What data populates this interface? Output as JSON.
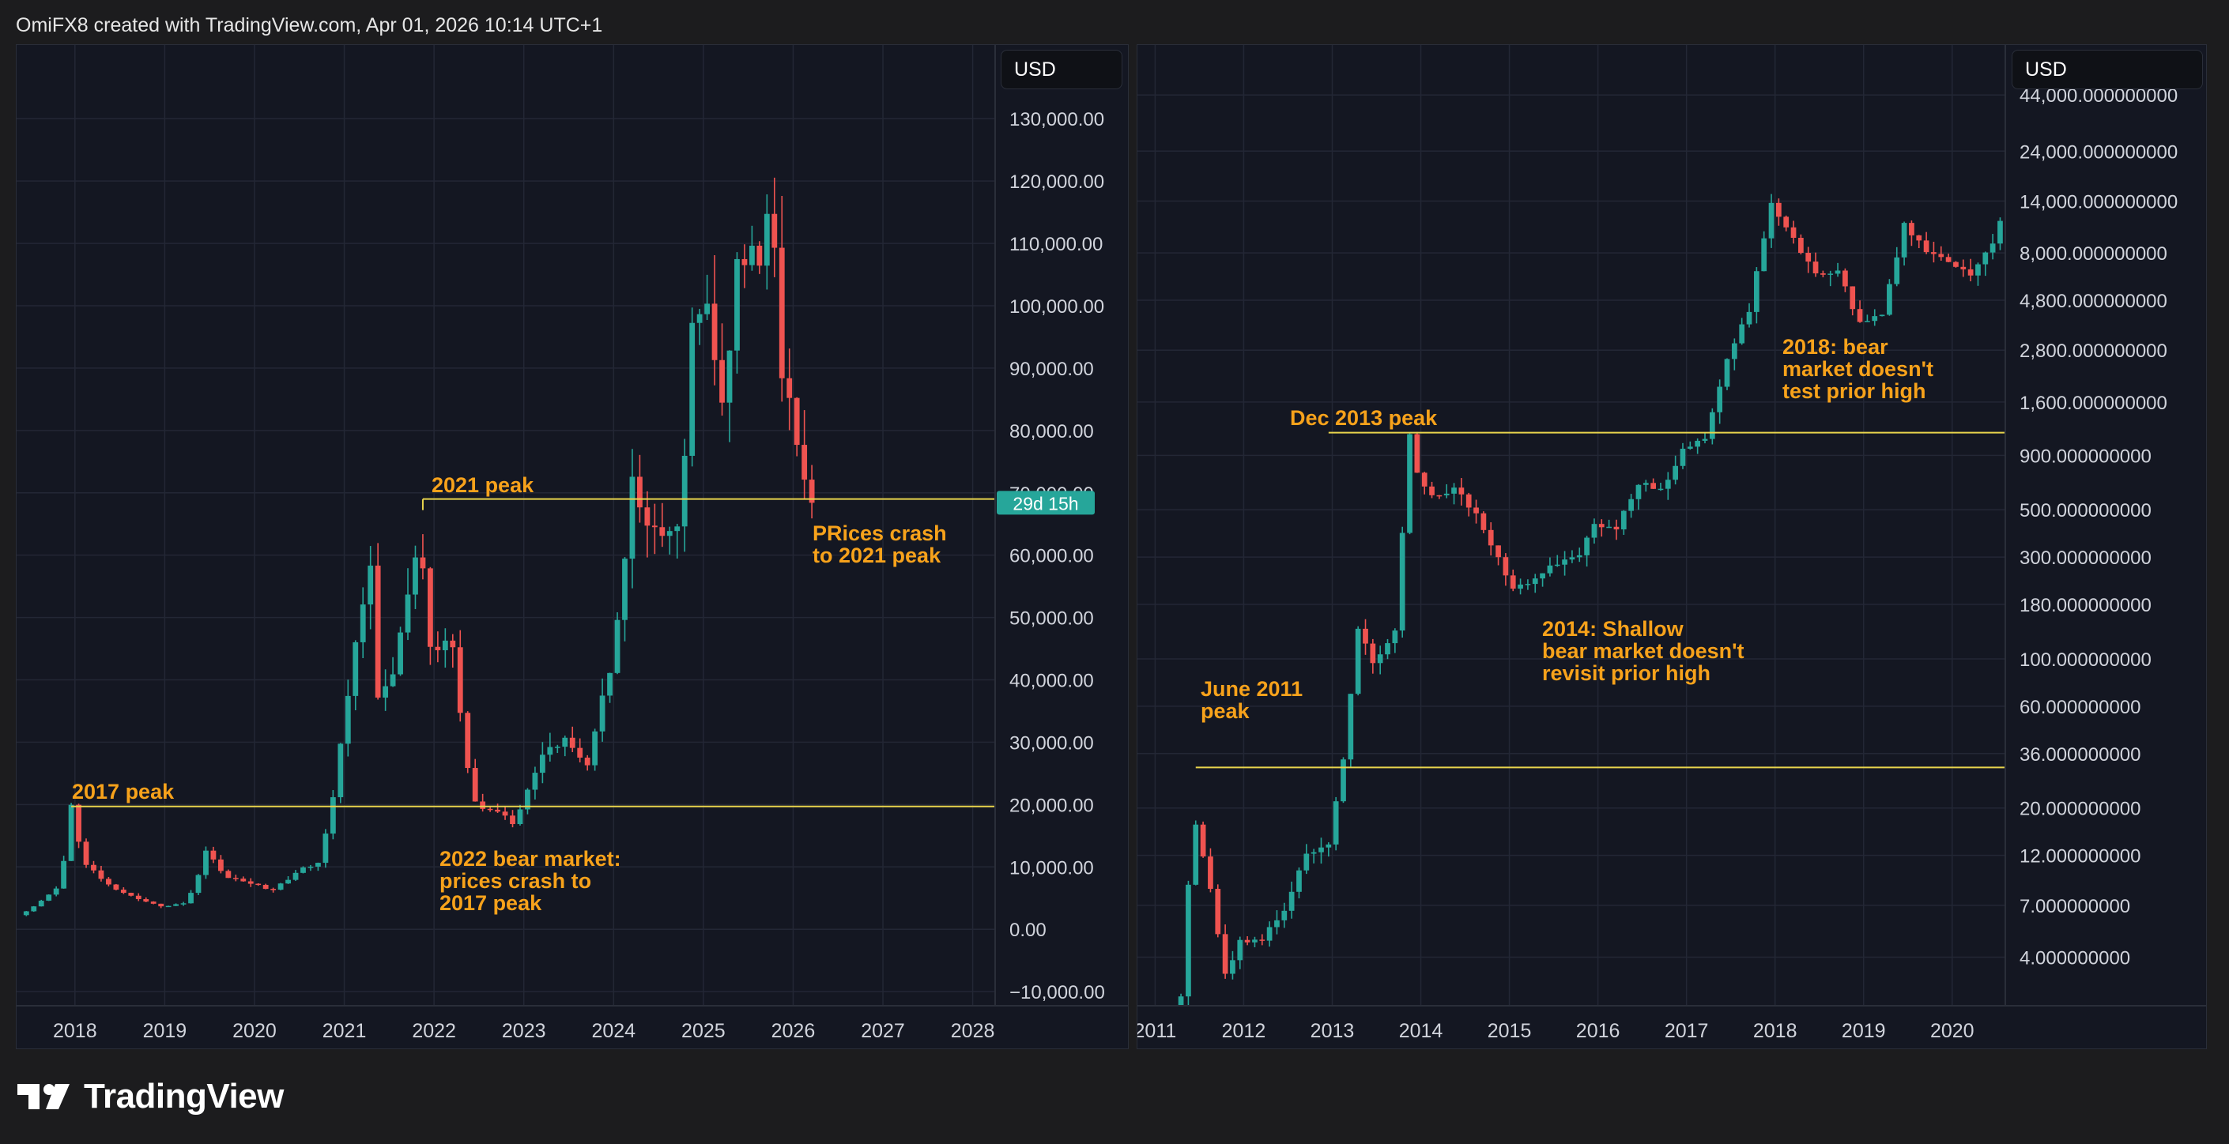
{
  "header": {
    "attribution": "OmiFX8 created with TradingView.com, Apr 01, 2026 10:14 UTC+1"
  },
  "footer": {
    "brand": "TradingView"
  },
  "colors": {
    "background": "#1c1c1e",
    "panel": "#141722",
    "grid": "#232735",
    "up_candle": "#26a69a",
    "down_candle": "#ef5350",
    "annotation": "#f7a21b",
    "level_line": "#e8d44d",
    "countdown_badge": "#26a69a",
    "axis_text": "#d1d4dc"
  },
  "chart_data": [
    {
      "type": "candlestick",
      "title": "",
      "currency_label": "USD",
      "y_scale": "linear",
      "ylim": [
        -11000,
        137000
      ],
      "y_ticks": [
        -10000,
        0,
        10000,
        20000,
        30000,
        40000,
        50000,
        60000,
        70000,
        80000,
        90000,
        100000,
        110000,
        120000,
        130000
      ],
      "y_tick_labels": [
        "−10,000.00",
        "0.00",
        "10,000.00",
        "20,000.00",
        "30,000.00",
        "40,000.00",
        "50,000.00",
        "60,000.00",
        "70,000.00",
        "80,000.00",
        "90,000.00",
        "100,000.00",
        "110,000.00",
        "120,000.00",
        "130,000.00"
      ],
      "xlim": [
        2017.35,
        2028.25
      ],
      "x_ticks": [
        2018,
        2019,
        2020,
        2021,
        2022,
        2023,
        2024,
        2025,
        2026,
        2027,
        2028
      ],
      "x_tick_labels": [
        "2018",
        "2019",
        "2020",
        "2021",
        "2022",
        "2023",
        "2024",
        "2025",
        "2026",
        "2027",
        "2028"
      ],
      "grid": true,
      "countdown_label": "29d 15h",
      "countdown_value": 68400,
      "key_points": [
        {
          "date": "2017-05",
          "price": 2300
        },
        {
          "date": "2017-08",
          "price": 4700
        },
        {
          "date": "2017-10",
          "price": 6400
        },
        {
          "date": "2017-12",
          "price": 19700
        },
        {
          "date": "2018-02",
          "price": 10500
        },
        {
          "date": "2018-06",
          "price": 6400
        },
        {
          "date": "2018-12",
          "price": 3700
        },
        {
          "date": "2019-03",
          "price": 4100
        },
        {
          "date": "2019-06",
          "price": 12900
        },
        {
          "date": "2019-09",
          "price": 8300
        },
        {
          "date": "2019-12",
          "price": 7200
        },
        {
          "date": "2020-03",
          "price": 6400
        },
        {
          "date": "2020-06",
          "price": 9200
        },
        {
          "date": "2020-09",
          "price": 10800
        },
        {
          "date": "2020-12",
          "price": 29000
        },
        {
          "date": "2021-02",
          "price": 47000
        },
        {
          "date": "2021-04",
          "price": 58000
        },
        {
          "date": "2021-05",
          "price": 37000
        },
        {
          "date": "2021-07",
          "price": 41500
        },
        {
          "date": "2021-10",
          "price": 61300
        },
        {
          "date": "2021-11",
          "price": 57000
        },
        {
          "date": "2021-12",
          "price": 46300
        },
        {
          "date": "2022-03",
          "price": 45500
        },
        {
          "date": "2022-06",
          "price": 19900
        },
        {
          "date": "2022-09",
          "price": 19400
        },
        {
          "date": "2022-11",
          "price": 17100
        },
        {
          "date": "2023-03",
          "price": 28500
        },
        {
          "date": "2023-06",
          "price": 30500
        },
        {
          "date": "2023-09",
          "price": 27000
        },
        {
          "date": "2023-12",
          "price": 42300
        },
        {
          "date": "2024-03",
          "price": 71300
        },
        {
          "date": "2024-06",
          "price": 62700
        },
        {
          "date": "2024-09",
          "price": 63300
        },
        {
          "date": "2024-11",
          "price": 96400
        },
        {
          "date": "2025-01",
          "price": 102400
        },
        {
          "date": "2025-03",
          "price": 82500
        },
        {
          "date": "2025-05",
          "price": 104600
        },
        {
          "date": "2025-08",
          "price": 108200
        },
        {
          "date": "2025-09",
          "price": 114000
        },
        {
          "date": "2025-10",
          "price": 109600
        },
        {
          "date": "2025-11",
          "price": 90500
        },
        {
          "date": "2026-01",
          "price": 78500
        },
        {
          "date": "2026-03",
          "price": 68400
        }
      ],
      "level_lines": [
        {
          "label": "2017 peak",
          "value": 19700,
          "from": "2017-12"
        },
        {
          "label": "2021 peak",
          "value": 69000,
          "from": "2021-11"
        }
      ],
      "annotations": [
        {
          "lines": [
            "2017 peak"
          ]
        },
        {
          "lines": [
            "2021 peak"
          ]
        },
        {
          "lines": [
            "2022 bear market:",
            "prices crash to",
            "2017 peak"
          ]
        },
        {
          "lines": [
            "PRices crash",
            "to 2021 peak"
          ]
        }
      ]
    },
    {
      "type": "candlestick",
      "title": "",
      "currency_label": "USD",
      "y_scale": "log",
      "ylim": [
        2.1,
        46000
      ],
      "y_ticks": [
        4,
        7,
        12,
        20,
        36,
        60,
        100,
        180,
        300,
        500,
        900,
        1600,
        2800,
        4800,
        8000,
        14000,
        24000,
        44000
      ],
      "y_tick_labels": [
        "4.000000000",
        "7.000000000",
        "12.000000000",
        "20.000000000",
        "36.000000000",
        "60.000000000",
        "100.000000000",
        "180.000000000",
        "300.000000000",
        "500.000000000",
        "900.000000000",
        "1,600.000000000",
        "2,800.000000000",
        "4,800.000000000",
        "8,000.000000000",
        "14,000.000000000",
        "24,000.000000000",
        "44,000.000000000"
      ],
      "xlim": [
        2010.8,
        2020.6
      ],
      "x_ticks": [
        2011,
        2012,
        2013,
        2014,
        2015,
        2016,
        2017,
        2018,
        2019,
        2020
      ],
      "x_tick_labels": [
        "2011",
        "2012",
        "2013",
        "2014",
        "2015",
        "2016",
        "2017",
        "2018",
        "2019",
        "2020"
      ],
      "grid": true,
      "key_points": [
        {
          "date": "2011-03",
          "price": 0.8
        },
        {
          "date": "2011-05",
          "price": 8.7
        },
        {
          "date": "2011-06",
          "price": 16.7
        },
        {
          "date": "2011-08",
          "price": 8.2
        },
        {
          "date": "2011-10",
          "price": 3.3
        },
        {
          "date": "2011-12",
          "price": 4.7
        },
        {
          "date": "2012-03",
          "price": 4.9
        },
        {
          "date": "2012-06",
          "price": 6.7
        },
        {
          "date": "2012-09",
          "price": 12.4
        },
        {
          "date": "2012-12",
          "price": 13.5
        },
        {
          "date": "2013-02",
          "price": 33
        },
        {
          "date": "2013-04",
          "price": 139
        },
        {
          "date": "2013-06",
          "price": 97
        },
        {
          "date": "2013-09",
          "price": 133
        },
        {
          "date": "2013-11",
          "price": 1129
        },
        {
          "date": "2013-12",
          "price": 754
        },
        {
          "date": "2014-02",
          "price": 573
        },
        {
          "date": "2014-05",
          "price": 630
        },
        {
          "date": "2014-08",
          "price": 480
        },
        {
          "date": "2014-10",
          "price": 338
        },
        {
          "date": "2015-01",
          "price": 217
        },
        {
          "date": "2015-04",
          "price": 236
        },
        {
          "date": "2015-07",
          "price": 284
        },
        {
          "date": "2015-10",
          "price": 314
        },
        {
          "date": "2015-12",
          "price": 430
        },
        {
          "date": "2016-03",
          "price": 416
        },
        {
          "date": "2016-06",
          "price": 673
        },
        {
          "date": "2016-09",
          "price": 609
        },
        {
          "date": "2016-12",
          "price": 963
        },
        {
          "date": "2017-03",
          "price": 1079
        },
        {
          "date": "2017-06",
          "price": 2480
        },
        {
          "date": "2017-09",
          "price": 4338
        },
        {
          "date": "2017-12",
          "price": 13880
        },
        {
          "date": "2018-02",
          "price": 10300
        },
        {
          "date": "2018-06",
          "price": 6400
        },
        {
          "date": "2018-09",
          "price": 6600
        },
        {
          "date": "2018-12",
          "price": 3700
        },
        {
          "date": "2019-03",
          "price": 4100
        },
        {
          "date": "2019-06",
          "price": 10800
        },
        {
          "date": "2019-09",
          "price": 8300
        },
        {
          "date": "2019-12",
          "price": 7200
        },
        {
          "date": "2020-03",
          "price": 6400
        },
        {
          "date": "2020-06",
          "price": 9100
        },
        {
          "date": "2020-07",
          "price": 11300
        }
      ],
      "level_lines": [
        {
          "label": "June 2011 peak",
          "value": 31,
          "from": "2011-06"
        },
        {
          "label": "Dec 2013 peak",
          "value": 1150,
          "from": "2012-12"
        }
      ],
      "annotations": [
        {
          "lines": [
            "Dec 2013 peak"
          ]
        },
        {
          "lines": [
            "June 2011",
            "peak"
          ]
        },
        {
          "lines": [
            "2014: Shallow",
            "bear market doesn't",
            "revisit prior high"
          ]
        },
        {
          "lines": [
            "2018: bear",
            "market doesn't",
            "test prior high"
          ]
        }
      ]
    }
  ]
}
